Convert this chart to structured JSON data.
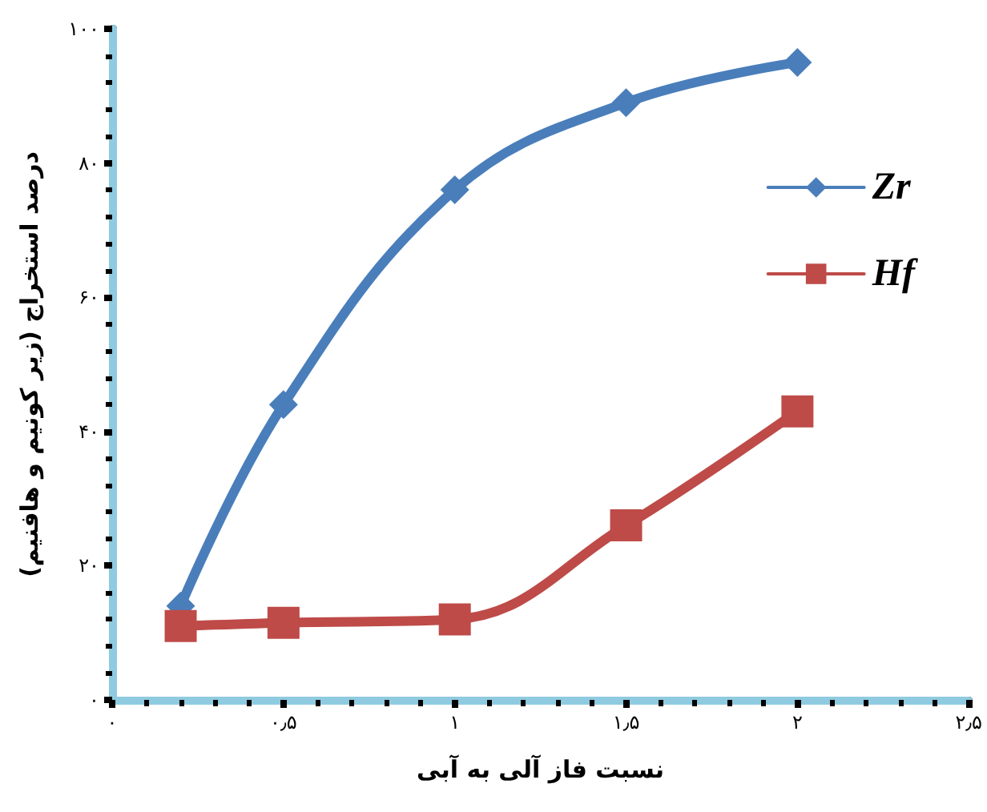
{
  "chart_data": {
    "type": "line",
    "xlabel": "نسبت فاز آلی به آبی",
    "ylabel": "درصد استخراج (زیر کونیم و هافنیم)",
    "series": [
      {
        "name": "Zr",
        "color": "#4a7ebb",
        "marker": "diamond",
        "x": [
          0.2,
          0.5,
          1,
          1.5,
          2
        ],
        "values": [
          14,
          44,
          76,
          89,
          95
        ]
      },
      {
        "name": "Hf",
        "color": "#be4b48",
        "marker": "square",
        "x": [
          0.2,
          0.5,
          1,
          1.5,
          2
        ],
        "values": [
          11,
          11.5,
          12,
          26,
          43
        ]
      }
    ],
    "xlim": [
      0,
      2.5
    ],
    "ylim": [
      0,
      100
    ],
    "xticks": [
      {
        "value": 0,
        "label": "۰"
      },
      {
        "value": 0.5,
        "label": "۰٫۵"
      },
      {
        "value": 1,
        "label": "۱"
      },
      {
        "value": 1.5,
        "label": "۱٫۵"
      },
      {
        "value": 2,
        "label": "۲"
      },
      {
        "value": 2.5,
        "label": "۲٫۵"
      }
    ],
    "yticks": [
      {
        "value": 0,
        "label": "۰"
      },
      {
        "value": 20,
        "label": "۲۰"
      },
      {
        "value": 40,
        "label": "۴۰"
      },
      {
        "value": 60,
        "label": "۶۰"
      },
      {
        "value": 80,
        "label": "۸۰"
      },
      {
        "value": 100,
        "label": "۱۰۰"
      }
    ],
    "grid": false,
    "legend": "right",
    "line_style": "solid"
  }
}
